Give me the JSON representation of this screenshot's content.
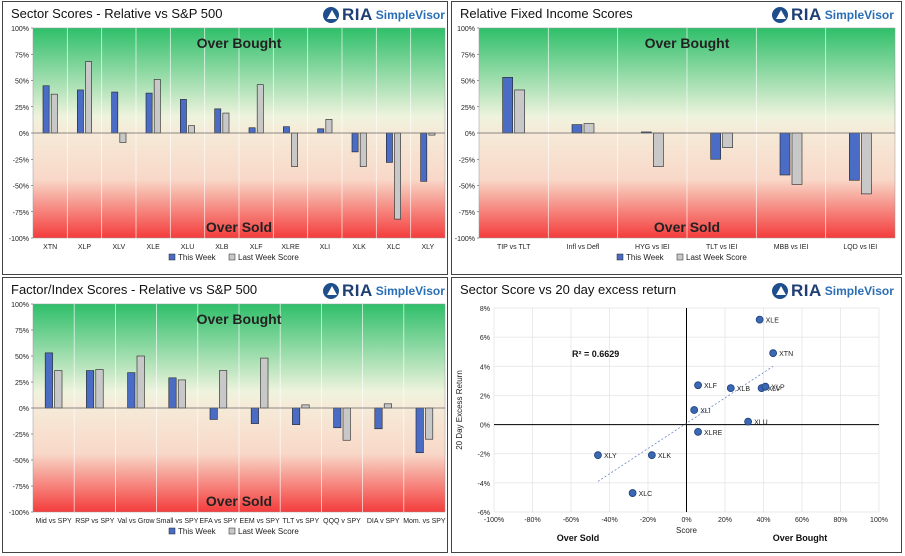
{
  "logo": {
    "brand": "RIA",
    "product": "SimpleVisor"
  },
  "panels": [
    {
      "title": "Sector Scores - Relative vs S&P 500",
      "chart_data": {
        "type": "bar",
        "categories": [
          "XTN",
          "XLP",
          "XLV",
          "XLE",
          "XLU",
          "XLB",
          "XLF",
          "XLRE",
          "XLI",
          "XLK",
          "XLC",
          "XLY"
        ],
        "series": [
          {
            "name": "This Week",
            "values": [
              45,
              41,
              39,
              38,
              32,
              23,
              5,
              6,
              4,
              -18,
              -28,
              -46
            ]
          },
          {
            "name": "Last Week Score",
            "values": [
              37,
              68,
              -9,
              51,
              7,
              19,
              46,
              -32,
              13,
              -32,
              -82,
              -2
            ]
          }
        ],
        "ylim": [
          -100,
          100
        ],
        "yticks": [
          "100%",
          "75%",
          "50%",
          "25%",
          "0%",
          "-25%",
          "-50%",
          "-75%",
          "-100%"
        ],
        "annotations": {
          "top": "Over Bought",
          "bottom": "Over Sold"
        },
        "legend": "bottom"
      }
    },
    {
      "title": "Relative Fixed Income Scores",
      "chart_data": {
        "type": "bar",
        "categories": [
          "TIP vs TLT",
          "Infl vs Defl",
          "HYG vs IEI",
          "TLT vs IEI",
          "MBB vs IEI",
          "LQD vs IEI"
        ],
        "series": [
          {
            "name": "This Week",
            "values": [
              53,
              8,
              1,
              -25,
              -40,
              -45
            ]
          },
          {
            "name": "Last Week Score",
            "values": [
              41,
              9,
              -32,
              -14,
              -49,
              -58
            ]
          }
        ],
        "ylim": [
          -100,
          100
        ],
        "yticks": [
          "100%",
          "75%",
          "50%",
          "25%",
          "0%",
          "-25%",
          "-50%",
          "-75%",
          "-100%"
        ],
        "annotations": {
          "top": "Over Bought",
          "bottom": "Over Sold"
        },
        "legend": "bottom"
      }
    },
    {
      "title": "Factor/Index Scores - Relative vs S&P 500",
      "chart_data": {
        "type": "bar",
        "categories": [
          "Mid vs SPY",
          "RSP vs SPY",
          "Val vs Grow",
          "Small vs SPY",
          "EFA vs SPY",
          "EEM vs SPY",
          "TLT vs SPY",
          "QQQ v SPY",
          "DIA v SPY",
          "Mom. vs SPY"
        ],
        "series": [
          {
            "name": "This Week",
            "values": [
              53,
              36,
              34,
              29,
              -11,
              -15,
              -16,
              -19,
              -20,
              -43
            ]
          },
          {
            "name": "Last Week Score",
            "values": [
              36,
              37,
              50,
              27,
              36,
              48,
              3,
              -31,
              4,
              -30
            ]
          }
        ],
        "ylim": [
          -100,
          100
        ],
        "yticks": [
          "100%",
          "75%",
          "50%",
          "25%",
          "0%",
          "-25%",
          "-50%",
          "-75%",
          "-100%"
        ],
        "annotations": {
          "top": "Over Bought",
          "bottom": "Over Sold"
        },
        "legend": "bottom"
      }
    },
    {
      "title": "Sector Score vs 20 day excess return",
      "chart_data": {
        "type": "scatter",
        "xlabel": "Score",
        "ylabel": "20 Day Excess Return",
        "xlim": [
          -100,
          100
        ],
        "ylim": [
          -6,
          8
        ],
        "xticks": [
          "-100%",
          "-80%",
          "-60%",
          "-40%",
          "-20%",
          "0%",
          "20%",
          "40%",
          "60%",
          "80%",
          "100%"
        ],
        "yticks": [
          "8%",
          "6%",
          "4%",
          "2%",
          "0%",
          "-2%",
          "-4%",
          "-6%"
        ],
        "r2_label": "R² = 0.6629",
        "bottom_left": "Over Sold",
        "bottom_right": "Over Bought",
        "points": [
          {
            "label": "XLE",
            "x": 38,
            "y": 7.2
          },
          {
            "label": "XTN",
            "x": 45,
            "y": 4.9
          },
          {
            "label": "XLF",
            "x": 6,
            "y": 2.7
          },
          {
            "label": "XLB",
            "x": 23,
            "y": 2.5
          },
          {
            "label": "XLV",
            "x": 39,
            "y": 2.5
          },
          {
            "label": "XLP",
            "x": 41,
            "y": 2.6
          },
          {
            "label": "XLI",
            "x": 4,
            "y": 1.0
          },
          {
            "label": "XLU",
            "x": 32,
            "y": 0.2
          },
          {
            "label": "XLRE",
            "x": 6,
            "y": -0.5
          },
          {
            "label": "XLY",
            "x": -46,
            "y": -2.1
          },
          {
            "label": "XLK",
            "x": -18,
            "y": -2.1
          },
          {
            "label": "XLC",
            "x": -28,
            "y": -4.7
          }
        ],
        "trendline": {
          "x": [
            -46,
            45
          ],
          "y": [
            -3.9,
            4.0
          ]
        }
      }
    }
  ]
}
